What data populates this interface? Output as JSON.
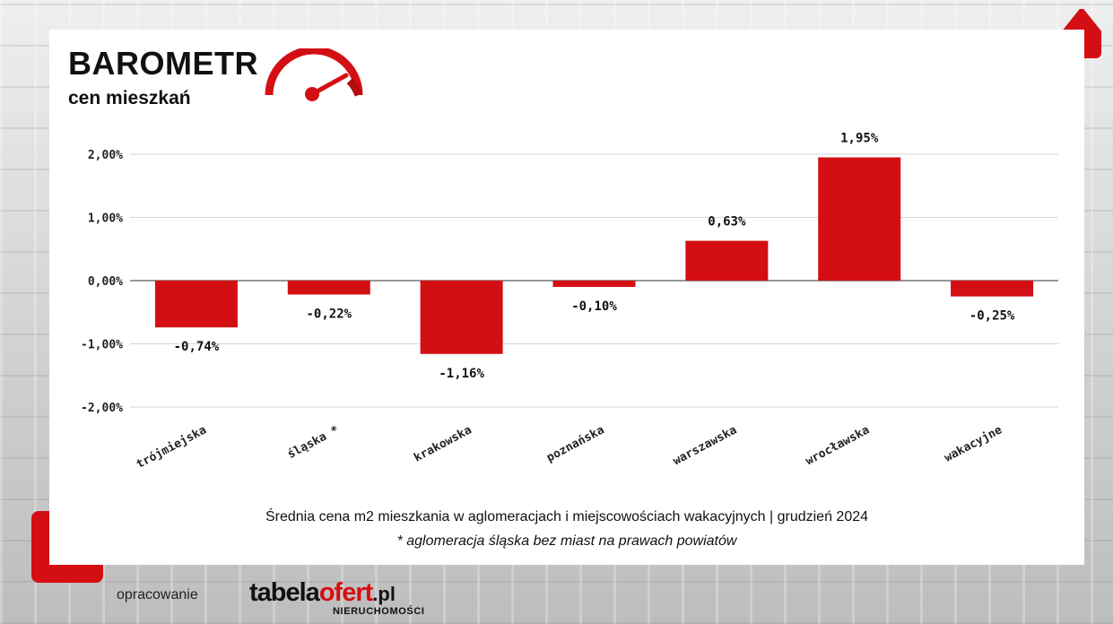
{
  "header": {
    "title": "BAROMETR",
    "subtitle": "cen mieszkań"
  },
  "colors": {
    "bar": "#d40f14",
    "accent": "#d40f14"
  },
  "chart_data": {
    "type": "bar",
    "categories": [
      "trójmiejska",
      "śląska *",
      "krakowska",
      "poznańska",
      "warszawska",
      "wrocławska",
      "wakacyjne"
    ],
    "values": [
      -0.74,
      -0.22,
      -1.16,
      -0.1,
      0.63,
      1.95,
      -0.25
    ],
    "value_labels": [
      "-0,74%",
      "-0,22%",
      "-1,16%",
      "-0,10%",
      "0,63%",
      "1,95%",
      "-0,25%"
    ],
    "ylim": [
      -2,
      2
    ],
    "yticks": [
      2,
      1,
      0,
      -1,
      -2
    ],
    "ytick_labels": [
      "2,00%",
      "1,00%",
      "0,00%",
      "-1,00%",
      "-2,00%"
    ],
    "grid": true,
    "legend": "none",
    "xlabel": "",
    "ylabel": ""
  },
  "caption": "Średnia cena m2 mieszkania w aglomeracjach i miejscowościach wakacyjnych | grudzień 2024",
  "note": "* aglomeracja śląska bez miast na prawach powiatów",
  "footer": {
    "label": "opracowanie",
    "logo_part1": "tabela",
    "logo_part2": "ofert",
    "logo_tld": ".pl",
    "logo_sub": "NIERUCHOMOŚCI"
  }
}
